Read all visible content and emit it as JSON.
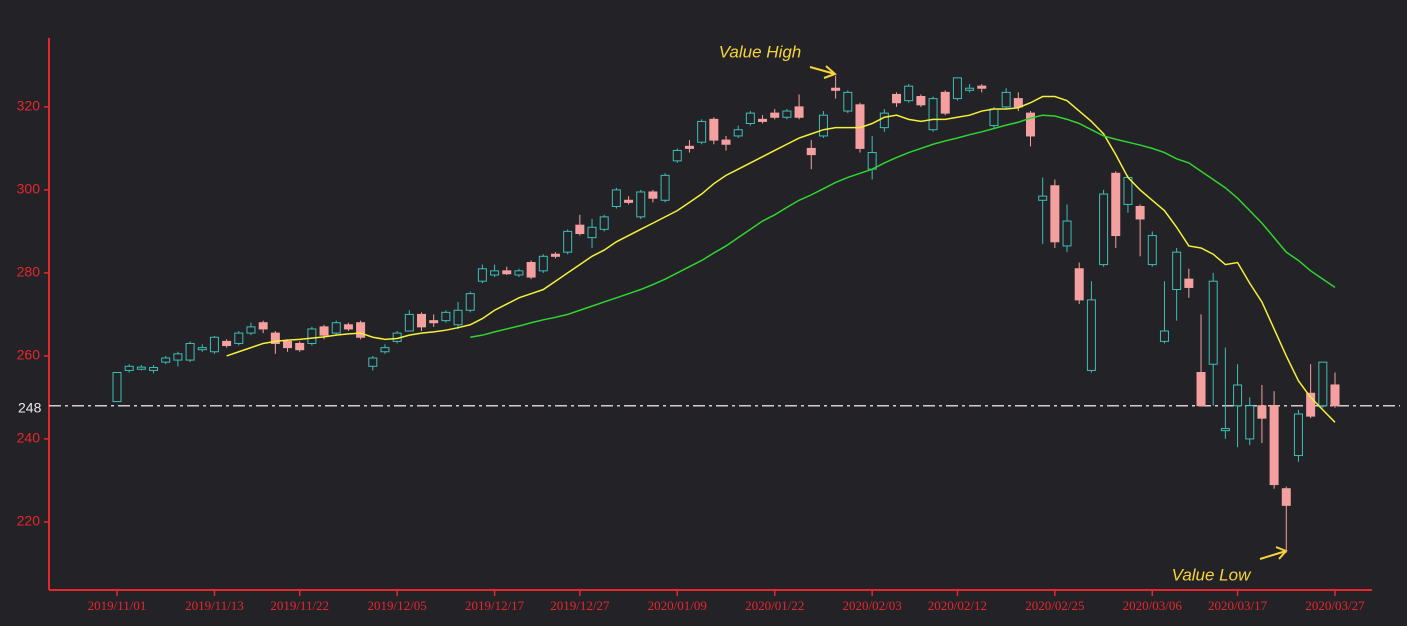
{
  "chart_data": {
    "type": "candlestick",
    "categories": [
      "2019/11/01",
      null,
      null,
      null,
      null,
      null,
      null,
      null,
      "2019/11/13",
      null,
      null,
      null,
      null,
      null,
      null,
      "2019/11/22",
      null,
      null,
      null,
      null,
      null,
      null,
      null,
      "2019/12/05",
      null,
      null,
      null,
      null,
      null,
      null,
      null,
      "2019/12/17",
      null,
      null,
      null,
      null,
      null,
      null,
      "2019/12/27",
      null,
      null,
      null,
      null,
      null,
      null,
      null,
      "2020/01/09",
      null,
      null,
      null,
      null,
      null,
      null,
      null,
      "2020/01/22",
      null,
      null,
      null,
      null,
      null,
      null,
      null,
      "2020/02/03",
      null,
      null,
      null,
      null,
      null,
      null,
      "2020/02/12",
      null,
      null,
      null,
      null,
      null,
      null,
      null,
      "2020/02/25",
      null,
      null,
      null,
      null,
      null,
      null,
      null,
      "2020/03/06",
      null,
      null,
      null,
      null,
      null,
      null,
      "2020/03/17",
      null,
      null,
      null,
      null,
      null,
      null,
      null,
      "2020/03/27"
    ],
    "open": [
      249,
      256.5,
      256.8,
      256.5,
      258.5,
      259,
      259,
      261.5,
      261,
      263.5,
      263,
      265.5,
      268,
      265.5,
      263.5,
      263,
      263,
      267,
      265.5,
      267.5,
      268,
      257.5,
      261,
      263.5,
      266,
      270,
      268.5,
      268.5,
      267.5,
      271,
      278,
      279.5,
      280.5,
      279.5,
      282.5,
      280.5,
      284.5,
      285,
      291.5,
      288.5,
      290.5,
      296,
      297.5,
      293.5,
      299.5,
      297.5,
      307,
      310.5,
      311.5,
      317,
      312,
      313,
      316,
      317,
      318.5,
      317.5,
      320,
      310,
      313,
      324.5,
      319,
      320.5,
      305,
      315,
      323,
      321.5,
      322.5,
      314.5,
      323.5,
      322,
      324,
      325,
      315.5,
      320,
      322,
      318.5,
      297.5,
      301,
      286.5,
      281,
      256.5,
      282,
      304,
      296.5,
      296,
      282,
      263.5,
      276,
      278.5,
      256,
      258,
      242,
      248,
      240,
      248,
      248,
      228,
      236,
      251,
      248,
      253
    ],
    "close": [
      256,
      257.5,
      257.3,
      257.2,
      259.5,
      260.5,
      263,
      262,
      264.5,
      262.5,
      265.5,
      267,
      266.5,
      263,
      262,
      261.5,
      266.5,
      265,
      268,
      266.5,
      264.5,
      259.5,
      262,
      265.5,
      270,
      267,
      268,
      270.5,
      271,
      275,
      281,
      280.5,
      279.8,
      280.5,
      279,
      284,
      284,
      290,
      289.5,
      291,
      293.5,
      300,
      297,
      299.5,
      298,
      303.5,
      309.5,
      310,
      316.5,
      312,
      311,
      314.5,
      318.5,
      316.5,
      317.5,
      319,
      317.5,
      308.5,
      318,
      324,
      323.5,
      310,
      309,
      318.5,
      321,
      325,
      320.5,
      322,
      318.5,
      327,
      324.5,
      324.5,
      319.5,
      323.5,
      320,
      313,
      298.5,
      287.5,
      292.5,
      273.5,
      273.5,
      299,
      289,
      303,
      293,
      289,
      266,
      285,
      276.5,
      248,
      278,
      242.5,
      253,
      248,
      245,
      229,
      224,
      246,
      245.5,
      258.5,
      248
    ],
    "low": [
      249,
      256,
      256.5,
      255.8,
      258,
      257.5,
      258.5,
      261,
      260.5,
      262,
      262.5,
      265,
      265.5,
      260.5,
      261,
      261,
      262.5,
      264,
      265,
      266,
      264,
      256.5,
      260.5,
      263,
      266,
      266,
      267,
      268,
      266.5,
      270.5,
      277.5,
      279,
      279.5,
      279,
      278.5,
      280,
      283.5,
      284.5,
      289,
      286,
      290,
      295.5,
      296.5,
      293,
      297,
      297,
      306.5,
      309,
      311,
      311,
      309.5,
      312.5,
      315.5,
      316,
      317,
      317,
      317,
      305,
      312.5,
      322,
      318.5,
      309,
      302.5,
      314,
      320,
      321,
      320,
      314,
      318,
      321.5,
      323.5,
      323.5,
      315,
      319.5,
      319,
      310.5,
      287,
      286,
      285,
      272.5,
      256,
      281.5,
      286,
      294.5,
      284,
      281.5,
      263,
      268.5,
      274,
      248,
      248,
      240,
      238,
      238.5,
      239,
      228,
      212.6,
      234.5,
      245,
      247.5,
      247.5
    ],
    "high": [
      256,
      258,
      257.8,
      257.8,
      260,
      261,
      263.5,
      262.8,
      264.8,
      264,
      266,
      268,
      268.5,
      266,
      264,
      263.5,
      267,
      267.5,
      268.5,
      268,
      268.5,
      260,
      262.8,
      266,
      271,
      270.5,
      270,
      271,
      273,
      275.5,
      282,
      282,
      281.5,
      281,
      283,
      284.5,
      285,
      290.5,
      294,
      293,
      294,
      300.5,
      298.5,
      300,
      300,
      304,
      310,
      312,
      317,
      317.5,
      313,
      315.5,
      319,
      318,
      319.5,
      319.5,
      323,
      312,
      319,
      327.5,
      324,
      321,
      313,
      319.5,
      323.5,
      325.5,
      323,
      322.5,
      324,
      327,
      325.5,
      325.5,
      320,
      324.5,
      323.5,
      319,
      303,
      302.5,
      296.5,
      282.5,
      278,
      300,
      304.5,
      303.5,
      296.5,
      290,
      278,
      286,
      281,
      270,
      280,
      262,
      258,
      250,
      253,
      251.5,
      228.5,
      247,
      258,
      258.5,
      256
    ],
    "up_color": "#3dbdb6",
    "down_color": "#f5a0a0",
    "lines": [
      {
        "color": "#f5f03a",
        "values": [
          null,
          null,
          null,
          null,
          null,
          null,
          null,
          null,
          null,
          260,
          261,
          262,
          263,
          263.5,
          263.8,
          264,
          264.3,
          264.6,
          265,
          265.3,
          265.5,
          264.5,
          264,
          264.2,
          265,
          265.5,
          265.8,
          266.2,
          266.8,
          267.5,
          269,
          271,
          272.5,
          274,
          275,
          276,
          278,
          280,
          282,
          284,
          285.5,
          287.5,
          289,
          290.5,
          292,
          293.5,
          295,
          297,
          299,
          301.5,
          303.5,
          305,
          306.5,
          308,
          309.5,
          311,
          312.5,
          313.5,
          314.5,
          315,
          315,
          315,
          316,
          317.5,
          318,
          317,
          316.5,
          317,
          317,
          317.5,
          318,
          319,
          319.5,
          319.5,
          319.8,
          321,
          322.5,
          322.5,
          321.5,
          319,
          316.5,
          313.5,
          308.5,
          303,
          300,
          297.5,
          295,
          291,
          286.5,
          286,
          284.5,
          282,
          282.5,
          277.5,
          273,
          266.5,
          260,
          254,
          250,
          247,
          244
        ]
      },
      {
        "color": "#2fd42f",
        "values": [
          null,
          null,
          null,
          null,
          null,
          null,
          null,
          null,
          null,
          null,
          null,
          null,
          null,
          null,
          null,
          null,
          null,
          null,
          null,
          null,
          null,
          null,
          null,
          null,
          null,
          null,
          null,
          null,
          null,
          264.5,
          265,
          265.8,
          266.5,
          267.2,
          268,
          268.7,
          269.3,
          270,
          271,
          272,
          273,
          274,
          275,
          276,
          277.2,
          278.5,
          280,
          281.5,
          283,
          284.8,
          286.5,
          288.5,
          290.5,
          292.5,
          294,
          295.8,
          297.5,
          298.8,
          300.3,
          301.8,
          303,
          304,
          305,
          306.5,
          307.8,
          309,
          310,
          311,
          311.8,
          312.5,
          313.3,
          314,
          314.8,
          315.6,
          316.3,
          317.3,
          318,
          317.8,
          317,
          316,
          314.5,
          313,
          312.2,
          311.5,
          310.8,
          310,
          309,
          307.5,
          306.5,
          304.5,
          302.5,
          300.5,
          298,
          295,
          292,
          288.5,
          285,
          283,
          280.5,
          278.5,
          276.5
        ]
      }
    ],
    "markline": {
      "value": 248
    },
    "annotations": [
      {
        "text": "Value High"
      },
      {
        "text": "Value Low"
      }
    ],
    "ylim": [
      203.6,
      336.6
    ],
    "yticks": [
      220,
      240,
      260,
      280,
      300,
      320
    ]
  }
}
